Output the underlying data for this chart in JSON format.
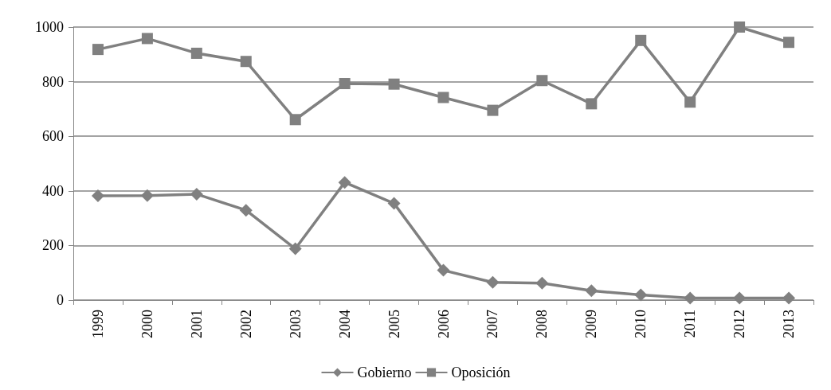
{
  "chart_data": {
    "type": "line",
    "categories": [
      "1999",
      "2000",
      "2001",
      "2002",
      "2003",
      "2004",
      "2005",
      "2006",
      "2007",
      "2008",
      "2009",
      "2010",
      "2011",
      "2012",
      "2013"
    ],
    "series": [
      {
        "name": "Gobierno",
        "color": "#808080",
        "marker": "diamond",
        "values": [
          382,
          383,
          388,
          329,
          188,
          431,
          354,
          109,
          65,
          62,
          34,
          19,
          7,
          7,
          7
        ]
      },
      {
        "name": "Oposición",
        "color": "#808080",
        "marker": "square",
        "values": [
          918,
          958,
          904,
          874,
          661,
          793,
          791,
          742,
          695,
          804,
          719,
          951,
          725,
          1000,
          944
        ]
      }
    ],
    "ylim": [
      0,
      1000
    ],
    "yticks": [
      0,
      200,
      400,
      600,
      800,
      1000
    ],
    "grid": "y",
    "legend": "bottom",
    "line_style": "solid"
  }
}
